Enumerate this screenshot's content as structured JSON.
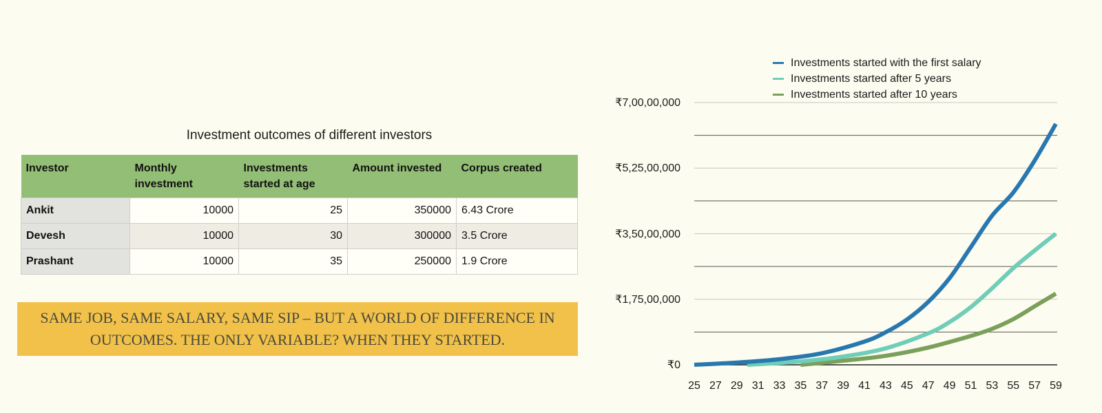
{
  "table": {
    "title": "Investment outcomes of different investors",
    "headers": [
      "Investor",
      "Monthly investment",
      "Investments started at age",
      "Amount invested",
      "Corpus created"
    ],
    "rows": [
      {
        "investor": "Ankit",
        "monthly": "10000",
        "age": "25",
        "invested": "350000",
        "corpus": "6.43 Crore"
      },
      {
        "investor": "Devesh",
        "monthly": "10000",
        "age": "30",
        "invested": "300000",
        "corpus": "3.5 Crore"
      },
      {
        "investor": "Prashant",
        "monthly": "10000",
        "age": "35",
        "invested": "250000",
        "corpus": "1.9 Crore"
      }
    ]
  },
  "banner": {
    "text": "SAME JOB, SAME SALARY, SAME SIP – BUT A WORLD OF DIFFERENCE IN OUTCOMES. THE ONLY VARIABLE? WHEN THEY STARTED.",
    "color": "#f2c14a"
  },
  "chart_data": {
    "type": "line",
    "title": "",
    "xlabel": "",
    "ylabel": "",
    "x_ticks": [
      "25",
      "27",
      "29",
      "31",
      "33",
      "35",
      "37",
      "39",
      "41",
      "43",
      "45",
      "47",
      "49",
      "51",
      "53",
      "55",
      "57",
      "59"
    ],
    "y_ticks": [
      "₹0",
      "₹1,75,00,000",
      "₹3,50,00,000",
      "₹5,25,00,000",
      "₹7,00,00,000"
    ],
    "ylim": [
      0,
      70000000
    ],
    "xlim": [
      25,
      59
    ],
    "grid": true,
    "legend_position": "top",
    "legend": [
      "Investments started with the first salary",
      "Investments started after 5 years",
      "Investments started after 10 years"
    ],
    "series": [
      {
        "name": "Investments started with the first salary",
        "color": "#2878b0",
        "start_age": 25,
        "x": [
          25,
          29,
          33,
          37,
          41,
          43,
          45,
          47,
          49,
          51,
          53,
          55,
          57,
          59
        ],
        "values": [
          0,
          600000,
          1500000,
          3100000,
          6200000,
          8700000,
          12100000,
          16800000,
          23100000,
          31400000,
          39800000,
          46000000,
          54500000,
          64300000
        ]
      },
      {
        "name": "Investments started after 5 years",
        "color": "#6fcdb8",
        "start_age": 30,
        "x": [
          30,
          35,
          39,
          43,
          47,
          49,
          51,
          53,
          55,
          57,
          59
        ],
        "values": [
          0,
          900000,
          2200000,
          4400000,
          8400000,
          11400000,
          15400000,
          20400000,
          25800000,
          30500000,
          35000000
        ]
      },
      {
        "name": "Investments started after 10 years",
        "color": "#7ba05b",
        "start_age": 35,
        "x": [
          35,
          39,
          43,
          47,
          51,
          53,
          55,
          57,
          59
        ],
        "values": [
          0,
          1100000,
          2400000,
          4600000,
          7700000,
          9600000,
          12200000,
          15600000,
          19000000
        ]
      }
    ],
    "annotations": []
  }
}
